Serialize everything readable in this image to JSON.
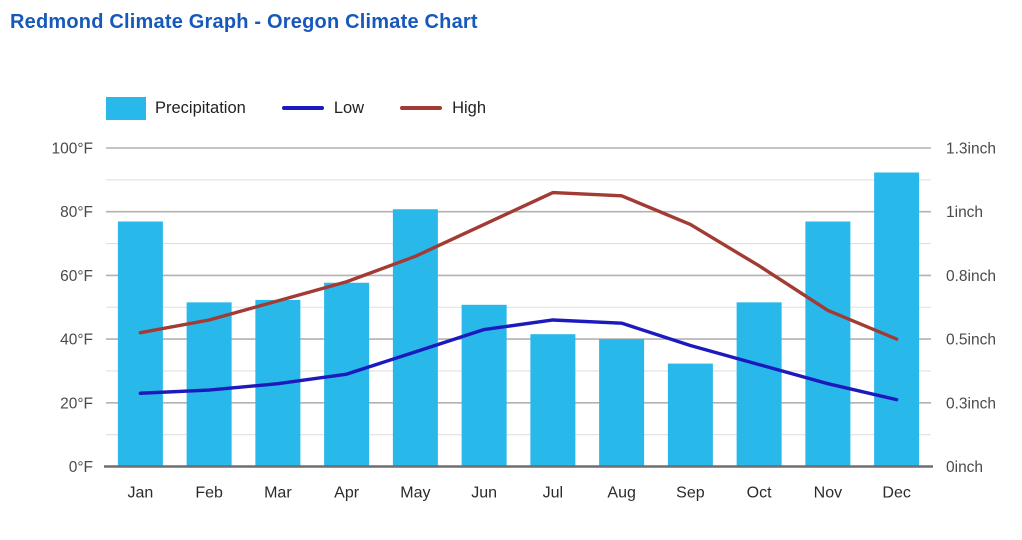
{
  "page": {
    "title": "Redmond Climate Graph - Oregon Climate Chart"
  },
  "legend": [
    {
      "label": "Precipitation",
      "type": "bar-swatch",
      "color": "#29b8ea"
    },
    {
      "label": "Low",
      "type": "line-swatch",
      "color": "#1c19bd"
    },
    {
      "label": "High",
      "type": "line-swatch",
      "color": "#a23b34"
    }
  ],
  "chart_data": {
    "type": "combo",
    "title": "Redmond Climate Graph - Oregon Climate Chart",
    "categories": [
      "Jan",
      "Feb",
      "Mar",
      "Apr",
      "May",
      "Jun",
      "Jul",
      "Aug",
      "Sep",
      "Oct",
      "Nov",
      "Dec"
    ],
    "series": [
      {
        "name": "Precipitation",
        "type": "bar",
        "axis": "right",
        "unit": "inch",
        "color": "#29b8ea",
        "values": [
          1.0,
          0.67,
          0.68,
          0.75,
          1.05,
          0.66,
          0.54,
          0.52,
          0.42,
          0.67,
          1.0,
          1.2
        ]
      },
      {
        "name": "Low",
        "type": "line",
        "axis": "left",
        "unit": "°F",
        "color": "#1c19bd",
        "values": [
          23,
          24,
          26,
          29,
          36,
          43,
          46,
          45,
          38,
          32,
          26,
          21
        ]
      },
      {
        "name": "High",
        "type": "line",
        "axis": "left",
        "unit": "°F",
        "color": "#a23b34",
        "values": [
          42,
          46,
          52,
          58,
          66,
          76,
          86,
          85,
          76,
          63,
          49,
          40
        ]
      }
    ],
    "left_axis": {
      "range": [
        0,
        100
      ],
      "major_step": 20,
      "minor_step": 10,
      "tick_labels": [
        "0°F",
        "20°F",
        "40°F",
        "60°F",
        "80°F",
        "100°F"
      ]
    },
    "right_axis": {
      "range": [
        0,
        1.3
      ],
      "tick_labels": [
        "0inch",
        "0.3inch",
        "0.5inch",
        "0.8inch",
        "1inch",
        "1.3inch"
      ]
    },
    "grid": {
      "major_color": "#b2b2b2",
      "minor_color": "#e0e0e0",
      "baseline_color": "#6e6e6e",
      "on": true
    },
    "text_colors": {
      "axis": "#4a4a4a",
      "months": "#2b2b2b"
    },
    "legend_position": "top-left"
  }
}
